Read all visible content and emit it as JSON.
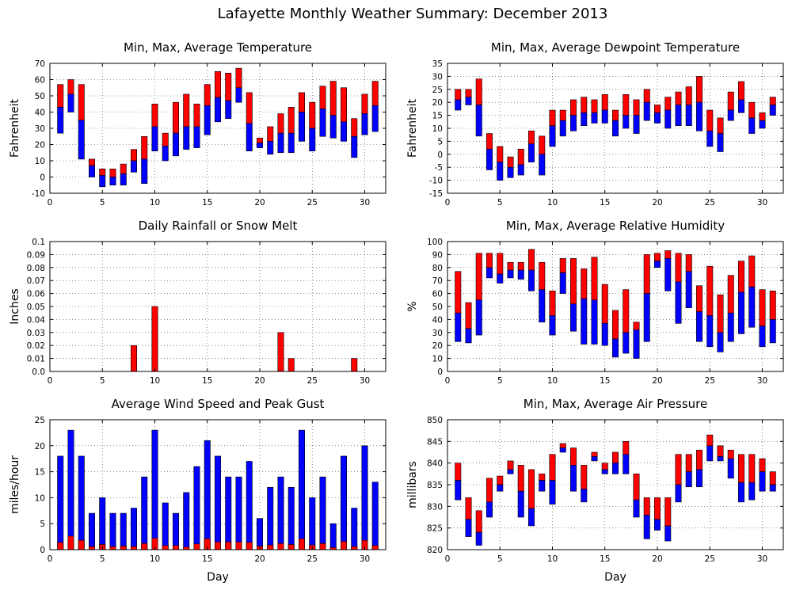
{
  "suptitle": "Lafayette Monthly Weather Summary: December 2013",
  "colors": {
    "upper": "#ff0000",
    "lower": "#0000ff",
    "frame": "#000000"
  },
  "chart_data": [
    {
      "id": "temperature",
      "type": "bar",
      "title": "Min, Max, Average Temperature",
      "xlabel": "",
      "ylabel": "Fahrenheit",
      "xlim": [
        0,
        32
      ],
      "ylim": [
        -10,
        70
      ],
      "yticks": [
        -10,
        0,
        10,
        20,
        30,
        40,
        50,
        60,
        70
      ],
      "xticks": [
        0,
        5,
        10,
        15,
        20,
        25,
        30
      ],
      "grid": true,
      "x": [
        1,
        2,
        3,
        4,
        5,
        6,
        7,
        8,
        9,
        10,
        11,
        12,
        13,
        14,
        15,
        16,
        17,
        18,
        19,
        20,
        21,
        22,
        23,
        24,
        25,
        26,
        27,
        28,
        29,
        30,
        31
      ],
      "series": [
        {
          "key": "min",
          "values": [
            27,
            40,
            11,
            0,
            -6,
            -5,
            -5,
            3,
            -4,
            16,
            10,
            13,
            17,
            18,
            26,
            34,
            36,
            46,
            16,
            18,
            14,
            15,
            15,
            22,
            16,
            25,
            24,
            22,
            12,
            26,
            28
          ]
        },
        {
          "key": "avg",
          "values": [
            43,
            51,
            35,
            7,
            1,
            0,
            2,
            10,
            11,
            31,
            19,
            27,
            31,
            31,
            44,
            49,
            47,
            55,
            33,
            21,
            22,
            27,
            27,
            40,
            30,
            42,
            38,
            34,
            25,
            39,
            44
          ]
        },
        {
          "key": "max",
          "values": [
            57,
            60,
            57,
            11,
            5,
            5,
            8,
            17,
            25,
            45,
            27,
            46,
            51,
            45,
            57,
            65,
            64,
            67,
            52,
            24,
            31,
            39,
            43,
            52,
            46,
            56,
            59,
            55,
            36,
            51,
            59
          ]
        }
      ]
    },
    {
      "id": "dewpoint",
      "type": "bar",
      "title": "Min, Max, Average Dewpoint Temperature",
      "xlabel": "",
      "ylabel": "Fahrenheit",
      "xlim": [
        0,
        32
      ],
      "ylim": [
        -15,
        35
      ],
      "yticks": [
        -15,
        -10,
        -5,
        0,
        5,
        10,
        15,
        20,
        25,
        30,
        35
      ],
      "xticks": [
        0,
        5,
        10,
        15,
        20,
        25,
        30
      ],
      "grid": true,
      "x": [
        1,
        2,
        3,
        4,
        5,
        6,
        7,
        8,
        9,
        10,
        11,
        12,
        13,
        14,
        15,
        16,
        17,
        18,
        19,
        20,
        21,
        22,
        23,
        24,
        25,
        26,
        27,
        28,
        29,
        30,
        31
      ],
      "series": [
        {
          "key": "min",
          "values": [
            17,
            19,
            7,
            -6,
            -10,
            -9,
            -8,
            -3,
            -8,
            3,
            7,
            9,
            11,
            12,
            12,
            7,
            10,
            8,
            13,
            12,
            10,
            11,
            11,
            9,
            3,
            1,
            13,
            16,
            8,
            10,
            15
          ]
        },
        {
          "key": "avg",
          "values": [
            21,
            22,
            19,
            2,
            -3,
            -5,
            -4,
            4,
            0,
            11,
            13,
            15,
            16,
            16,
            17,
            13,
            15,
            15,
            20,
            16,
            17,
            19,
            19,
            20,
            9,
            8,
            17,
            21,
            14,
            13,
            19
          ]
        },
        {
          "key": "max",
          "values": [
            25,
            25,
            29,
            8,
            3,
            -1,
            2,
            9,
            7,
            17,
            17,
            21,
            22,
            21,
            23,
            17,
            23,
            21,
            25,
            19,
            22,
            24,
            26,
            30,
            17,
            14,
            24,
            28,
            20,
            16,
            22
          ]
        }
      ]
    },
    {
      "id": "rainfall",
      "type": "bar",
      "title": "Daily Rainfall or Snow Melt",
      "xlabel": "",
      "ylabel": "Inches",
      "xlim": [
        0,
        32
      ],
      "ylim": [
        0,
        0.1
      ],
      "yticks": [
        0.0,
        0.01,
        0.02,
        0.03,
        0.04,
        0.05,
        0.06,
        0.07,
        0.08,
        0.09,
        0.1
      ],
      "ytick_labels": [
        "0.0",
        "0.01",
        "0.02",
        "0.03",
        "0.04",
        "0.05",
        "0.06",
        "0.07",
        "0.08",
        "0.09",
        "0.1"
      ],
      "xticks": [
        0,
        5,
        10,
        15,
        20,
        25,
        30
      ],
      "grid": true,
      "x": [
        1,
        2,
        3,
        4,
        5,
        6,
        7,
        8,
        9,
        10,
        11,
        12,
        13,
        14,
        15,
        16,
        17,
        18,
        19,
        20,
        21,
        22,
        23,
        24,
        25,
        26,
        27,
        28,
        29,
        30,
        31
      ],
      "series": [
        {
          "key": "rain",
          "values": [
            0,
            0,
            0,
            0,
            0,
            0,
            0,
            0.02,
            0,
            0.05,
            0,
            0,
            0,
            0,
            0,
            0,
            0,
            0,
            0,
            0,
            0,
            0.03,
            0.01,
            0,
            0,
            0,
            0,
            0,
            0.01,
            0,
            0
          ]
        }
      ]
    },
    {
      "id": "humidity",
      "type": "bar",
      "title": "Min, Max, Average Relative Humidity",
      "xlabel": "",
      "ylabel": "%",
      "xlim": [
        0,
        32
      ],
      "ylim": [
        0,
        100
      ],
      "yticks": [
        0,
        10,
        20,
        30,
        40,
        50,
        60,
        70,
        80,
        90,
        100
      ],
      "xticks": [
        0,
        5,
        10,
        15,
        20,
        25,
        30
      ],
      "grid": true,
      "x": [
        1,
        2,
        3,
        4,
        5,
        6,
        7,
        8,
        9,
        10,
        11,
        12,
        13,
        14,
        15,
        16,
        17,
        18,
        19,
        20,
        21,
        22,
        23,
        24,
        25,
        26,
        27,
        28,
        29,
        30,
        31
      ],
      "series": [
        {
          "key": "min",
          "values": [
            23,
            22,
            28,
            72,
            68,
            72,
            71,
            62,
            38,
            28,
            60,
            31,
            21,
            21,
            20,
            11,
            14,
            10,
            23,
            80,
            62,
            37,
            49,
            23,
            19,
            15,
            23,
            29,
            34,
            19,
            22
          ]
        },
        {
          "key": "avg",
          "values": [
            45,
            33,
            55,
            80,
            75,
            78,
            78,
            78,
            63,
            43,
            76,
            52,
            56,
            55,
            37,
            25,
            30,
            32,
            60,
            85,
            87,
            69,
            77,
            46,
            43,
            30,
            45,
            61,
            65,
            35,
            40
          ]
        },
        {
          "key": "max",
          "values": [
            77,
            53,
            91,
            91,
            91,
            84,
            84,
            94,
            84,
            62,
            87,
            87,
            79,
            88,
            67,
            47,
            63,
            38,
            90,
            91,
            93,
            91,
            90,
            66,
            81,
            59,
            74,
            85,
            89,
            63,
            62
          ]
        }
      ]
    },
    {
      "id": "wind",
      "type": "bar",
      "title": "Average Wind Speed and Peak Gust",
      "xlabel": "Day",
      "ylabel": "miles/hour",
      "xlim": [
        0,
        32
      ],
      "ylim": [
        0,
        25
      ],
      "yticks": [
        0,
        5,
        10,
        15,
        20,
        25
      ],
      "xticks": [
        0,
        5,
        10,
        15,
        20,
        25,
        30
      ],
      "grid": true,
      "x": [
        1,
        2,
        3,
        4,
        5,
        6,
        7,
        8,
        9,
        10,
        11,
        12,
        13,
        14,
        15,
        16,
        17,
        18,
        19,
        20,
        21,
        22,
        23,
        24,
        25,
        26,
        27,
        28,
        29,
        30,
        31
      ],
      "series": [
        {
          "key": "avg_speed",
          "values": [
            1.4,
            2.6,
            1.8,
            0.6,
            1.0,
            0.6,
            0.7,
            0.6,
            1.2,
            2.2,
            0.8,
            0.8,
            0.5,
            1.1,
            2.1,
            1.5,
            1.5,
            1.5,
            1.4,
            0.7,
            0.9,
            1.2,
            1.0,
            2.1,
            0.9,
            1.2,
            0.4,
            1.6,
            0.6,
            1.8,
            0.8
          ]
        },
        {
          "key": "peak_gust",
          "values": [
            18,
            23,
            18,
            7,
            10,
            7,
            7,
            8,
            14,
            23,
            9,
            7,
            11,
            16,
            21,
            18,
            14,
            14,
            17,
            6,
            12,
            14,
            12,
            23,
            10,
            14,
            5,
            18,
            8,
            20,
            13
          ]
        }
      ]
    },
    {
      "id": "pressure",
      "type": "bar",
      "title": "Min, Max, Average Air Pressure",
      "xlabel": "Day",
      "ylabel": "millibars",
      "xlim": [
        0,
        32
      ],
      "ylim": [
        820,
        850
      ],
      "yticks": [
        820,
        825,
        830,
        835,
        840,
        845,
        850
      ],
      "xticks": [
        0,
        5,
        10,
        15,
        20,
        25,
        30
      ],
      "grid": true,
      "x": [
        1,
        2,
        3,
        4,
        5,
        6,
        7,
        8,
        9,
        10,
        11,
        12,
        13,
        14,
        15,
        16,
        17,
        18,
        19,
        20,
        21,
        22,
        23,
        24,
        25,
        26,
        27,
        28,
        29,
        30,
        31
      ],
      "series": [
        {
          "key": "min",
          "values": [
            831.5,
            823,
            821,
            827.5,
            833.5,
            837.5,
            827.5,
            825.5,
            833.5,
            830.5,
            842.5,
            833.5,
            831,
            840.5,
            837.5,
            837.5,
            837.5,
            827.5,
            822.5,
            824.5,
            822,
            831,
            834.5,
            834.5,
            840.5,
            840.5,
            836.5,
            831,
            831.5,
            833.5,
            833.5
          ]
        },
        {
          "key": "avg",
          "values": [
            836,
            827,
            824,
            831,
            835,
            838.5,
            833.5,
            829.5,
            836,
            836,
            843.5,
            839.5,
            834,
            841.5,
            838.5,
            840,
            842,
            831.5,
            828,
            827,
            825.5,
            835,
            838,
            838.5,
            844,
            841.5,
            841,
            835.5,
            835.5,
            838,
            835
          ]
        },
        {
          "key": "max",
          "values": [
            840,
            832,
            829,
            836.5,
            837,
            840.5,
            839.5,
            838.5,
            837.5,
            842,
            844.5,
            843.5,
            839.5,
            842.5,
            840,
            842.5,
            845,
            837.5,
            832,
            832,
            832,
            842,
            842,
            843,
            846.5,
            844,
            843,
            842,
            842,
            841,
            838
          ]
        }
      ]
    }
  ]
}
